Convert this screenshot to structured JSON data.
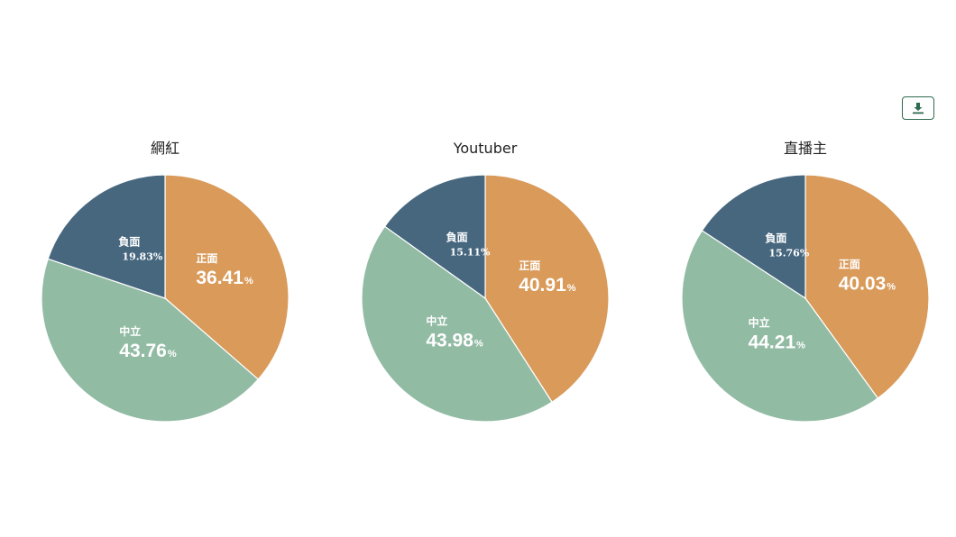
{
  "toolbar": {
    "download_icon": "download-icon",
    "download_color": "#2f6b4f"
  },
  "colors": {
    "正面": "#d99a5a",
    "中立": "#92bba4",
    "負面": "#47677f"
  },
  "chart_data": [
    {
      "type": "pie",
      "title": "網紅",
      "slices": [
        {
          "label": "正面",
          "value": 36.41,
          "value_text": "36.41"
        },
        {
          "label": "中立",
          "value": 43.76,
          "value_text": "43.76"
        },
        {
          "label": "負面",
          "value": 19.83,
          "value_text": "19.83"
        }
      ]
    },
    {
      "type": "pie",
      "title": "Youtuber",
      "slices": [
        {
          "label": "正面",
          "value": 40.91,
          "value_text": "40.91"
        },
        {
          "label": "中立",
          "value": 43.98,
          "value_text": "43.98"
        },
        {
          "label": "負面",
          "value": 15.11,
          "value_text": "15.11"
        }
      ]
    },
    {
      "type": "pie",
      "title": "直播主",
      "slices": [
        {
          "label": "正面",
          "value": 40.03,
          "value_text": "40.03"
        },
        {
          "label": "中立",
          "value": 44.21,
          "value_text": "44.21"
        },
        {
          "label": "負面",
          "value": 15.76,
          "value_text": "15.76"
        }
      ]
    }
  ],
  "percent_sign": "%"
}
